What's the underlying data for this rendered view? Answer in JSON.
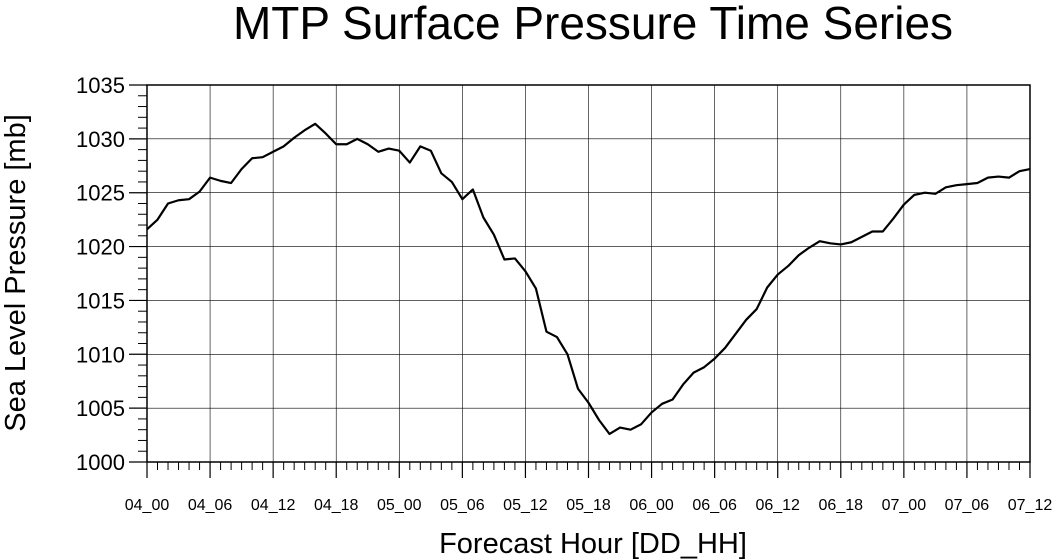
{
  "chart_data": {
    "type": "line",
    "title": "MTP Surface Pressure Time Series",
    "xlabel": "Forecast Hour [DD_HH]",
    "ylabel": "Sea Level Pressure [mb]",
    "ylim": [
      1000,
      1035
    ],
    "yticks": [
      1000,
      1005,
      1010,
      1015,
      1020,
      1025,
      1030,
      1035
    ],
    "yticks_labels": [
      "1000",
      "1005",
      "1010",
      "1015",
      "1020",
      "1025",
      "1030",
      "1035"
    ],
    "xlim": [
      0,
      84
    ],
    "xticks": [
      0,
      6,
      12,
      18,
      24,
      30,
      36,
      42,
      48,
      54,
      60,
      66,
      72,
      78,
      84
    ],
    "xtick_labels": [
      "04_00",
      "04_06",
      "04_12",
      "04_18",
      "05_00",
      "05_06",
      "05_12",
      "05_18",
      "06_00",
      "06_06",
      "06_12",
      "06_18",
      "07_00",
      "07_06",
      "07_12"
    ],
    "grid": true,
    "series": [
      {
        "color": "#000000",
        "x": [
          0,
          1,
          2,
          3,
          4,
          5,
          6,
          7,
          8,
          9,
          10,
          11,
          12,
          13,
          14,
          15,
          16,
          17,
          18,
          19,
          20,
          21,
          22,
          23,
          24,
          25,
          26,
          27,
          28,
          29,
          30,
          31,
          32,
          33,
          34,
          35,
          36,
          37,
          38,
          39,
          40,
          41,
          42,
          43,
          44,
          45,
          46,
          47,
          48,
          49,
          50,
          51,
          52,
          53,
          54,
          55,
          56,
          57,
          58,
          59,
          60,
          61,
          62,
          63,
          64,
          65,
          66,
          67,
          68,
          69,
          70,
          71,
          72,
          73,
          74,
          75,
          76,
          77,
          78,
          79,
          80,
          81,
          82,
          83,
          84
        ],
        "values": [
          1021.6,
          1022.5,
          1024.0,
          1024.3,
          1024.4,
          1025.1,
          1026.4,
          1026.1,
          1025.9,
          1027.2,
          1028.2,
          1028.3,
          1028.8,
          1029.3,
          1030.1,
          1030.8,
          1031.4,
          1030.5,
          1029.5,
          1029.5,
          1030.0,
          1029.5,
          1028.8,
          1029.1,
          1028.9,
          1027.8,
          1029.3,
          1028.9,
          1026.8,
          1026.0,
          1024.4,
          1025.3,
          1022.7,
          1021.1,
          1018.8,
          1018.9,
          1017.7,
          1016.1,
          1012.1,
          1011.6,
          1010.0,
          1006.8,
          1005.5,
          1003.9,
          1002.6,
          1003.2,
          1003.0,
          1003.5,
          1004.6,
          1005.4,
          1005.8,
          1007.2,
          1008.3,
          1008.8,
          1009.6,
          1010.6,
          1011.9,
          1013.2,
          1014.2,
          1016.2,
          1017.4,
          1018.2,
          1019.2,
          1019.9,
          1020.5,
          1020.3,
          1020.2,
          1020.4,
          1020.9,
          1021.4,
          1021.4,
          1022.6,
          1023.9,
          1024.8,
          1025.0,
          1024.9,
          1025.5,
          1025.7,
          1025.8,
          1025.9,
          1026.4,
          1026.5,
          1026.4,
          1027.0,
          1027.2
        ]
      }
    ]
  }
}
